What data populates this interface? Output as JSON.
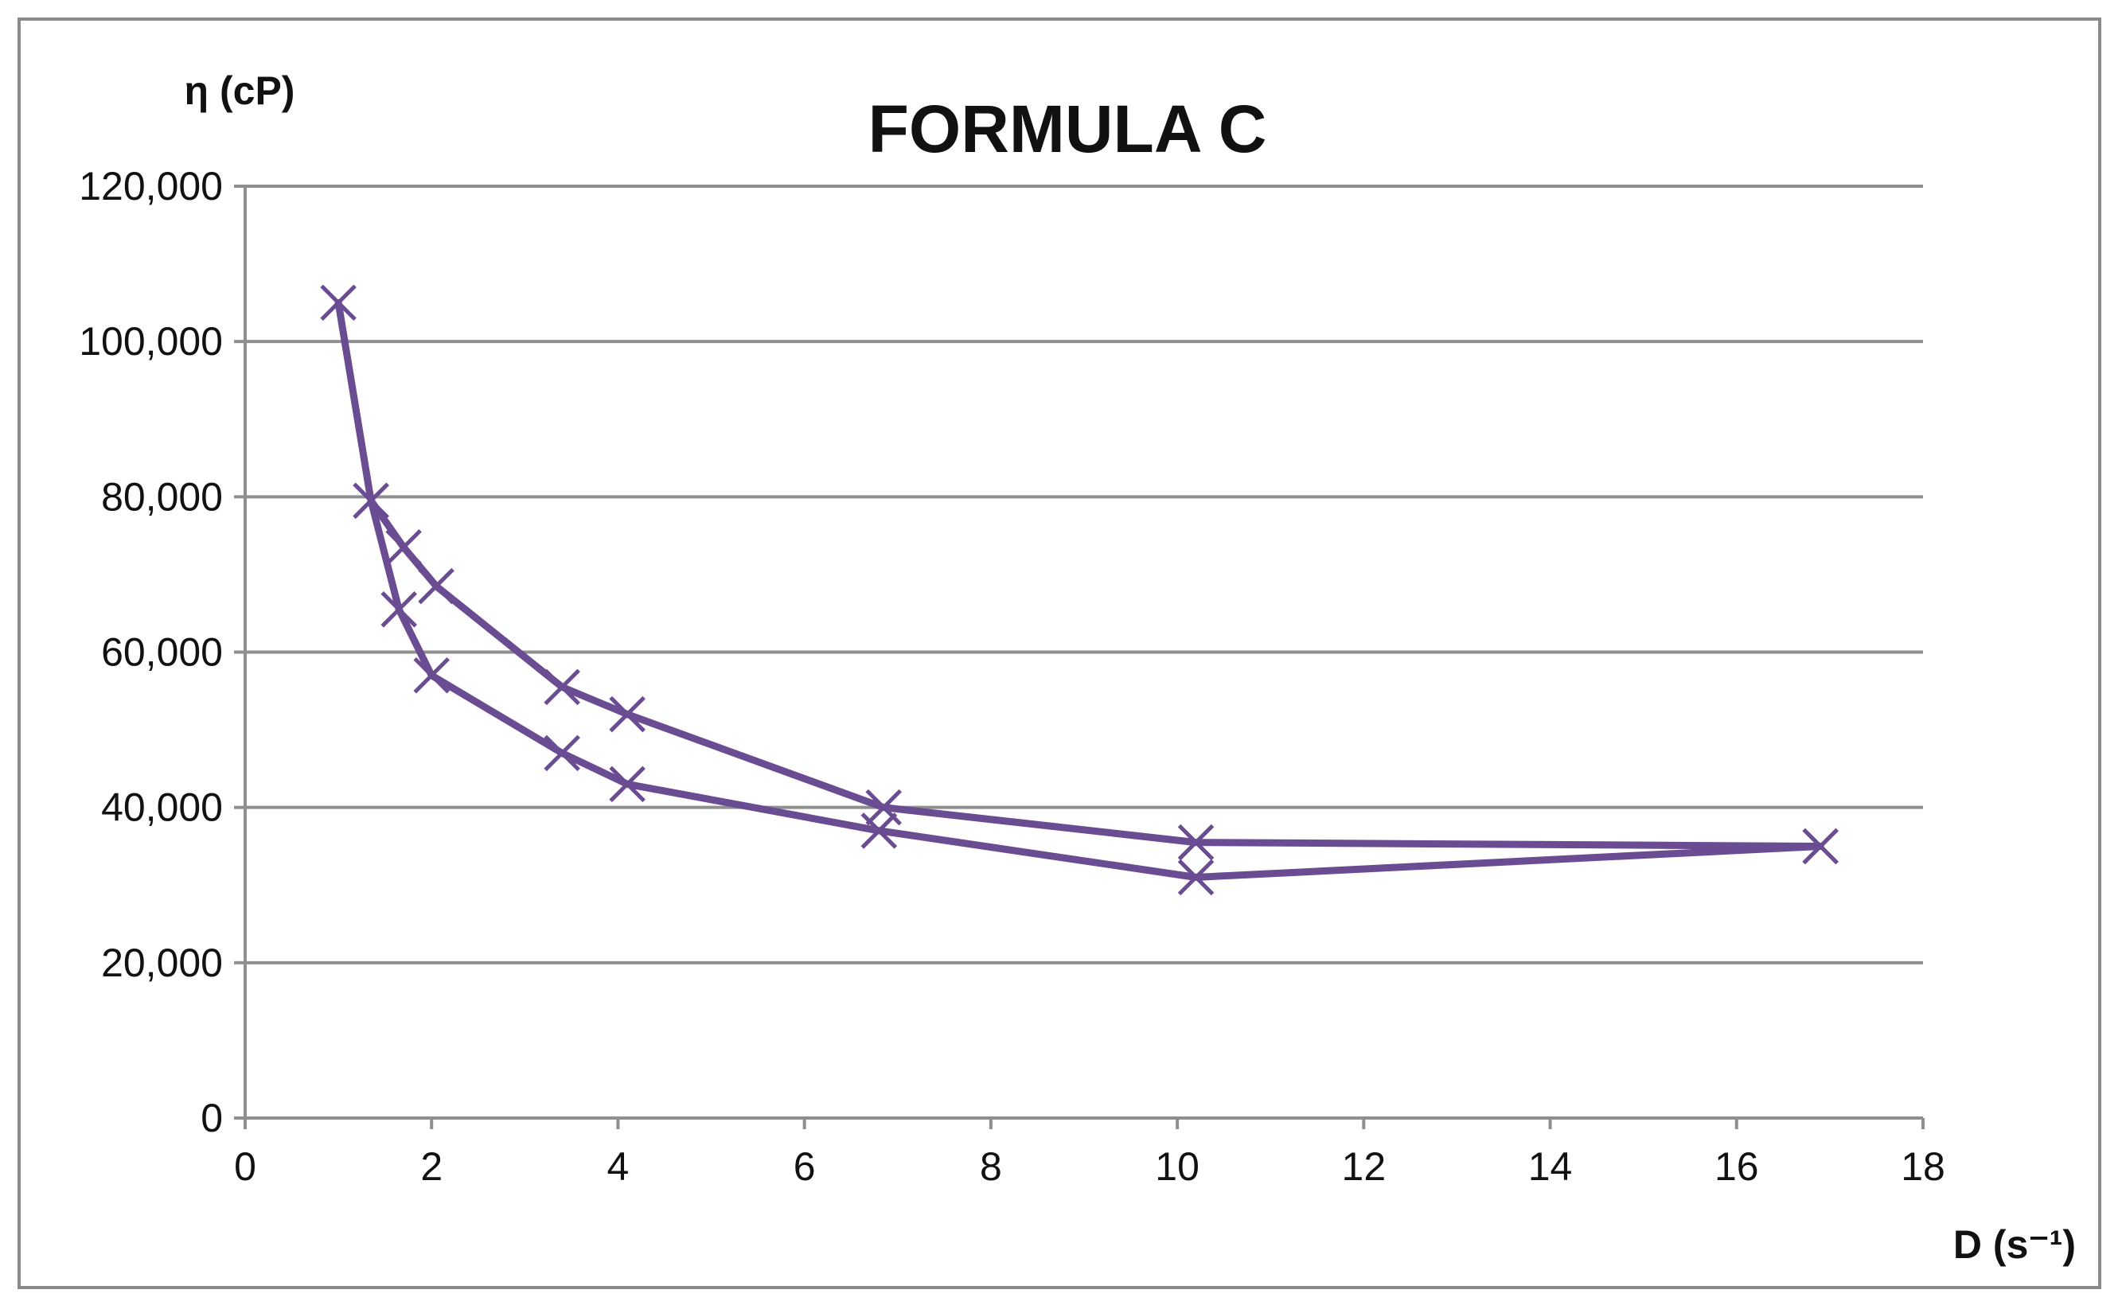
{
  "chart_data": {
    "type": "line",
    "title": "FORMULA C",
    "xlabel": "D (s⁻¹)",
    "ylabel": "η (cP)",
    "xlim": [
      0,
      18
    ],
    "ylim": [
      0,
      120000
    ],
    "x_ticks": [
      "0",
      "2",
      "4",
      "6",
      "8",
      "10",
      "12",
      "14",
      "16",
      "18"
    ],
    "y_ticks": [
      "0",
      "20,000",
      "40,000",
      "60,000",
      "80,000",
      "100,000",
      "120,000"
    ],
    "grid": true,
    "legend": false,
    "marker": "x",
    "color": "#6a4c93",
    "series": [
      {
        "points": [
          {
            "x": 1.0,
            "y": 105000
          },
          {
            "x": 1.35,
            "y": 79500
          },
          {
            "x": 1.7,
            "y": 73500
          },
          {
            "x": 2.05,
            "y": 68500
          },
          {
            "x": 3.4,
            "y": 55500
          },
          {
            "x": 4.1,
            "y": 52000
          },
          {
            "x": 6.85,
            "y": 40000
          },
          {
            "x": 10.2,
            "y": 35500
          },
          {
            "x": 16.9,
            "y": 35000
          }
        ]
      },
      {
        "points": [
          {
            "x": 16.9,
            "y": 35000
          },
          {
            "x": 10.2,
            "y": 31000
          },
          {
            "x": 6.8,
            "y": 37000
          },
          {
            "x": 4.1,
            "y": 43000
          },
          {
            "x": 3.4,
            "y": 47000
          },
          {
            "x": 2.0,
            "y": 57000
          },
          {
            "x": 1.65,
            "y": 65500
          },
          {
            "x": 1.35,
            "y": 79500
          }
        ]
      }
    ]
  }
}
